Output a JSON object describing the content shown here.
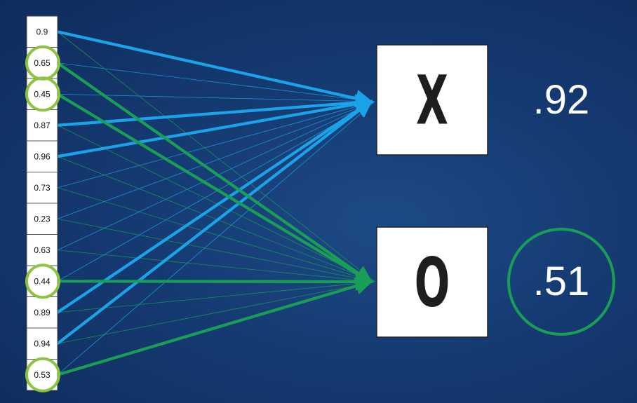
{
  "inputs": [
    {
      "value": "0.9",
      "highlighted": false
    },
    {
      "value": "0.65",
      "highlighted": true
    },
    {
      "value": "0.45",
      "highlighted": true
    },
    {
      "value": "0.87",
      "highlighted": false
    },
    {
      "value": "0.96",
      "highlighted": false
    },
    {
      "value": "0.73",
      "highlighted": false
    },
    {
      "value": "0.23",
      "highlighted": false
    },
    {
      "value": "0.63",
      "highlighted": false
    },
    {
      "value": "0.44",
      "highlighted": true
    },
    {
      "value": "0.89",
      "highlighted": false
    },
    {
      "value": "0.94",
      "highlighted": false
    },
    {
      "value": "0.53",
      "highlighted": true
    }
  ],
  "outputs": [
    {
      "label": "X",
      "score": ".92",
      "color": "#1aa3e8",
      "circled": false,
      "strong_inputs": [
        0,
        3,
        4,
        9,
        10
      ]
    },
    {
      "label": "O",
      "score": ".51",
      "color": "#1a9e55",
      "circled": true,
      "strong_inputs": [
        1,
        2,
        8,
        11
      ]
    }
  ],
  "colors": {
    "blue_connection": "#1aa3e8",
    "green_connection": "#1a9e55",
    "highlight_ring": "#8dc43f",
    "score_ring": "#1a9e55"
  }
}
